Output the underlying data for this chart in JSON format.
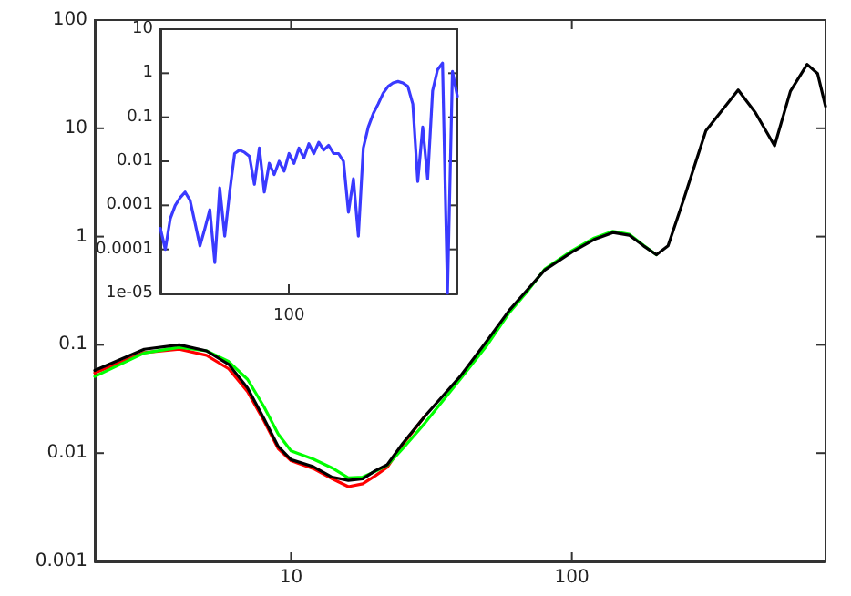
{
  "chart_data": [
    {
      "type": "line",
      "x": [
        2,
        3,
        4,
        5,
        6,
        7,
        8,
        9,
        10,
        12,
        14,
        16,
        18,
        20,
        22,
        25,
        30,
        40,
        50,
        60,
        70,
        80,
        100,
        120,
        140,
        160,
        180,
        200,
        220,
        250,
        300,
        391,
        450,
        527,
        600,
        688,
        750,
        800
      ],
      "log": "xy",
      "xlim": [
        2,
        800
      ],
      "ylim": [
        0.001,
        100
      ],
      "xticks": [
        10,
        100
      ],
      "yticks": [
        0.001,
        0.01,
        0.1,
        1,
        10,
        100
      ],
      "grid": false,
      "marker": "none",
      "line_style": "solid",
      "series": [
        {
          "color": "#ff0000",
          "values": [
            0.055,
            0.085,
            0.091,
            0.08,
            0.06,
            0.037,
            0.02,
            0.011,
            0.0085,
            0.0072,
            0.0058,
            0.0049,
            0.0052,
            0.0062,
            0.0074,
            0.012,
            0.022,
            null,
            null,
            null,
            null,
            null,
            null,
            null,
            null,
            null,
            null,
            null,
            null,
            null,
            null,
            null,
            null,
            null,
            null,
            null,
            null,
            null
          ]
        },
        {
          "color": "#00ff00",
          "values": [
            0.051,
            0.084,
            0.095,
            0.088,
            0.07,
            0.048,
            0.027,
            0.015,
            0.0105,
            0.0088,
            0.0073,
            0.0059,
            0.006,
            0.0068,
            0.0077,
            0.011,
            0.019,
            0.048,
            0.1,
            0.2,
            0.32,
            0.5,
            0.74,
            0.97,
            1.12,
            1.05,
            0.83,
            0.68,
            null,
            null,
            null,
            null,
            null,
            null,
            null,
            null,
            null,
            null
          ]
        },
        {
          "color": "#000000",
          "values": [
            0.058,
            0.091,
            0.1,
            0.088,
            0.066,
            0.04,
            0.021,
            0.0115,
            0.0087,
            0.0075,
            0.006,
            0.0056,
            0.0058,
            0.0069,
            0.0078,
            0.0123,
            0.022,
            0.051,
            0.11,
            0.21,
            0.33,
            0.49,
            0.72,
            0.94,
            1.09,
            1.03,
            0.82,
            0.68,
            0.82,
            2.2,
            9.5,
            22.6,
            14,
            6.9,
            22,
            39,
            32,
            16
          ]
        }
      ]
    },
    {
      "type": "line",
      "log": "y",
      "ylim": [
        1e-05,
        10
      ],
      "yticks": [
        {
          "value": 1e-05,
          "label": "1e-05"
        },
        0.0001,
        0.001,
        0.01,
        0.1,
        1,
        10
      ],
      "grid": false,
      "marker": "none",
      "line_style": "solid",
      "categories": [
        null,
        null,
        null,
        null,
        null,
        null,
        null,
        null,
        null,
        null,
        null,
        null,
        null,
        null,
        null,
        null,
        null,
        null,
        null,
        null,
        null,
        null,
        null,
        null,
        null,
        null,
        "100",
        null,
        null,
        null,
        null,
        null,
        null,
        null,
        null,
        null,
        null,
        null,
        null,
        null,
        null,
        null,
        null,
        null,
        null,
        null,
        null,
        null,
        null,
        null,
        null,
        null,
        null,
        null,
        null,
        null,
        null,
        null,
        null,
        null,
        null
      ],
      "series": [
        {
          "color": "#3a3aff",
          "values": [
            0.0003,
            0.0001,
            0.0005,
            0.001,
            0.0015,
            0.002,
            0.0013,
            0.0004,
            0.00012,
            0.0003,
            0.0008,
            5e-05,
            0.0025,
            0.0002,
            0.002,
            0.015,
            0.018,
            0.016,
            0.013,
            0.003,
            0.02,
            0.002,
            0.009,
            0.005,
            0.01,
            0.006,
            0.015,
            0.009,
            0.02,
            0.012,
            0.025,
            0.015,
            0.027,
            0.018,
            0.023,
            0.015,
            0.015,
            0.01,
            0.0007,
            0.004,
            0.0002,
            0.02,
            0.06,
            0.12,
            0.2,
            0.35,
            0.5,
            0.6,
            0.65,
            0.6,
            0.5,
            0.2,
            0.0035,
            0.06,
            0.004,
            0.4,
            1.2,
            1.7,
            1e-05,
            1.1,
            0.3
          ]
        }
      ]
    }
  ]
}
